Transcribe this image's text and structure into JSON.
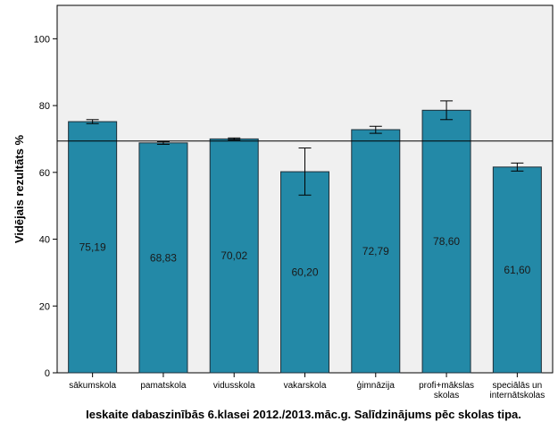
{
  "chart_data": {
    "type": "bar",
    "title": "Ieskaite dabaszinībās 6.klasei 2012./2013.māc.g. Salīdzinājums pēc skolas tipa.",
    "ylabel": "Vidējais rezultāts %",
    "xlabel": "",
    "ylim": [
      0,
      110
    ],
    "yticks": [
      0,
      20,
      40,
      60,
      80,
      100
    ],
    "reference_line": 69.4,
    "categories": [
      [
        "sākumskola"
      ],
      [
        "pamatskola"
      ],
      [
        "vidusskola"
      ],
      [
        "vakarskola"
      ],
      [
        "ģimnāzija"
      ],
      [
        "profi+mākslas",
        "skolas"
      ],
      [
        "speciālās un",
        "internātskolas"
      ]
    ],
    "values": [
      75.19,
      68.83,
      70.02,
      60.2,
      72.79,
      78.6,
      61.6
    ],
    "value_labels": [
      "75,19",
      "68,83",
      "70,02",
      "60,20",
      "72,79",
      "78,60",
      "61,60"
    ],
    "error_bars": [
      [
        74.6,
        75.8
      ],
      [
        68.4,
        69.2
      ],
      [
        69.7,
        70.3
      ],
      [
        53.2,
        67.3
      ],
      [
        71.7,
        73.8
      ],
      [
        75.8,
        81.4
      ],
      [
        60.4,
        62.8
      ]
    ],
    "colors": {
      "bar": "#2389a7",
      "bar_edge": "#1f2f38",
      "plot_bg": "#f0f0f0"
    }
  }
}
